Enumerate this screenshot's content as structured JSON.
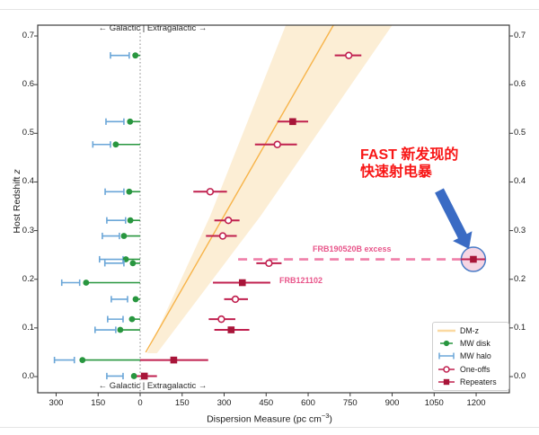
{
  "axes": {
    "y_label_main": "Host Redshift ",
    "y_label_var": "z",
    "x_label_prefix": "Dispersion Measure (pc cm",
    "x_label_sup": "−3",
    "x_label_suffix": ")",
    "galactic_note": "←  Galactic | Extragalactic  →"
  },
  "annotations": {
    "fast_line1": "FAST 新发现的",
    "fast_line2": "快速射电暴",
    "frb190520b": "FRB190520B excess",
    "frb121102": "FRB121102"
  },
  "legend": {
    "items": [
      {
        "key": "dm-z",
        "label": "DM-z"
      },
      {
        "key": "mw-disk",
        "label": "MW disk"
      },
      {
        "key": "mw-halo",
        "label": "MW halo"
      },
      {
        "key": "one-offs",
        "label": "One-offs"
      },
      {
        "key": "repeaters",
        "label": "Repeaters"
      }
    ]
  },
  "colors": {
    "mw_disk_green": "#28963f",
    "mw_halo_blue": "#6aa6d8",
    "frb_crimson": "#c0204f",
    "repeater_fill": "#a81539",
    "dmz_line_orange": "#f7b44a",
    "dmz_band_fill": "#fcecd0",
    "excess_dash_pink": "#ef7fa8",
    "label_pink": "#e8558a",
    "arrow_blue": "#3a6bc4",
    "highlight_fill": "#f5d0e0",
    "highlight_stroke": "#4a7cc7",
    "annotation_red": "#f81616"
  },
  "chart_data": {
    "type": "scatter",
    "xlabel": "Dispersion Measure (pc cm⁻³)",
    "ylabel": "Host Redshift z",
    "xlim": [
      -357,
      1318
    ],
    "ylim": [
      -0.033,
      0.722
    ],
    "x_ticks_dm": [
      -300,
      -150,
      0,
      150,
      300,
      450,
      600,
      750,
      900,
      1050,
      1200
    ],
    "x_tick_labels": [
      "300",
      "150",
      "0",
      "150",
      "300",
      "450",
      "600",
      "750",
      "900",
      "1050",
      "1200"
    ],
    "y_ticks": [
      0.0,
      0.1,
      0.2,
      0.3,
      0.4,
      0.5,
      0.6,
      0.7
    ],
    "y_tick_labels": [
      "0.0",
      "0.1",
      "0.2",
      "0.3",
      "0.4",
      "0.5",
      "0.6",
      "0.7"
    ],
    "grid": false,
    "legend_position": "lower right",
    "dm_z_line": {
      "z": [
        0.05,
        0.722
      ],
      "dm": [
        20,
        690
      ]
    },
    "dm_z_band": {
      "left_edge": [
        [
          0.048,
          25
        ],
        [
          0.33,
          250
        ],
        [
          0.722,
          520
        ]
      ],
      "right_edge": [
        [
          0.048,
          60
        ],
        [
          0.33,
          430
        ],
        [
          0.722,
          900
        ]
      ]
    },
    "galactic_divider_dm": 0,
    "frbs": [
      {
        "z": 0.66,
        "marker": "one-off",
        "dm": 745,
        "dm_err": [
          695,
          790
        ],
        "mw_disk_dm": -17,
        "mw_halo_err": [
          -106,
          -39
        ]
      },
      {
        "z": 0.524,
        "marker": "repeater",
        "dm": 545,
        "dm_err": [
          490,
          600
        ],
        "mw_disk_dm": -36,
        "mw_halo_err": [
          -122,
          -58
        ]
      },
      {
        "z": 0.477,
        "marker": "one-off",
        "dm": 490,
        "dm_err": [
          410,
          560
        ],
        "mw_disk_dm": -87,
        "mw_halo_err": [
          -169,
          -106
        ]
      },
      {
        "z": 0.38,
        "marker": "one-off",
        "dm": 250,
        "dm_err": [
          190,
          310
        ],
        "mw_disk_dm": -39,
        "mw_halo_err": [
          -125,
          -58
        ]
      },
      {
        "z": 0.321,
        "marker": "one-off",
        "dm": 315,
        "dm_err": [
          265,
          355
        ],
        "mw_disk_dm": -35,
        "mw_halo_err": [
          -119,
          -52
        ]
      },
      {
        "z": 0.289,
        "marker": "one-off",
        "dm": 295,
        "dm_err": [
          235,
          345
        ],
        "mw_disk_dm": -58,
        "mw_halo_err": [
          -135,
          -74
        ]
      },
      {
        "z": 0.241,
        "marker": "repeater",
        "dm": 1190,
        "dm_err": [
          1146,
          1232
        ],
        "mw_disk_dm": -51,
        "mw_halo_err": [
          -145,
          -61
        ],
        "name": "FRB190520B",
        "highlight": true,
        "excess_dash_from_dm": 350
      },
      {
        "z": 0.233,
        "marker": "one-off",
        "dm": 460,
        "dm_err": [
          415,
          505
        ],
        "mw_disk_dm": -26,
        "mw_halo_err": [
          -126,
          -58
        ]
      },
      {
        "z": 0.193,
        "marker": "repeater",
        "dm": 365,
        "dm_err": [
          260,
          465
        ],
        "mw_disk_dm": -193,
        "mw_halo_err": [
          -280,
          -216
        ],
        "name": "FRB121102"
      },
      {
        "z": 0.159,
        "marker": "one-off",
        "dm": 340,
        "dm_err": [
          300,
          385
        ],
        "mw_disk_dm": -16,
        "mw_halo_err": [
          -103,
          -45
        ]
      },
      {
        "z": 0.118,
        "marker": "one-off",
        "dm": 290,
        "dm_err": [
          245,
          340
        ],
        "mw_disk_dm": -29,
        "mw_halo_err": [
          -116,
          -61
        ]
      },
      {
        "z": 0.096,
        "marker": "repeater",
        "dm": 325,
        "dm_err": [
          265,
          390
        ],
        "mw_disk_dm": -71,
        "mw_halo_err": [
          -161,
          -87
        ]
      },
      {
        "z": 0.034,
        "marker": "repeater",
        "dm": 120,
        "dm_err": [
          0,
          243
        ],
        "mw_disk_dm": -206,
        "mw_halo_err": [
          -306,
          -235
        ]
      },
      {
        "z": 0.001,
        "marker": "repeater",
        "dm": 15,
        "dm_err": [
          -12,
          60
        ],
        "mw_disk_dm": -22,
        "mw_halo_err": [
          -119,
          -61
        ]
      }
    ]
  }
}
